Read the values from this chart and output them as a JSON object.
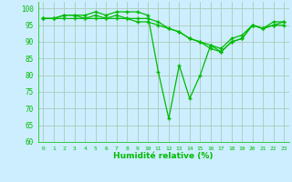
{
  "xlabel": "Humidité relative (%)",
  "ylabel": "",
  "background_color": "#cceeff",
  "grid_color": "#aaccbb",
  "line_color": "#00bb00",
  "marker_color": "#00bb00",
  "xlim": [
    -0.5,
    23.5
  ],
  "ylim": [
    60,
    102
  ],
  "yticks": [
    60,
    65,
    70,
    75,
    80,
    85,
    90,
    95,
    100
  ],
  "xticks": [
    0,
    1,
    2,
    3,
    4,
    5,
    6,
    7,
    8,
    9,
    10,
    11,
    12,
    13,
    14,
    15,
    16,
    17,
    18,
    19,
    20,
    21,
    22,
    23
  ],
  "series": [
    [
      97,
      97,
      98,
      98,
      98,
      99,
      98,
      99,
      99,
      99,
      98,
      81,
      67,
      83,
      73,
      80,
      89,
      88,
      91,
      92,
      95,
      94,
      96,
      96
    ],
    [
      97,
      97,
      98,
      98,
      97,
      98,
      97,
      98,
      97,
      97,
      97,
      96,
      94,
      93,
      91,
      90,
      89,
      87,
      90,
      91,
      95,
      94,
      95,
      96
    ],
    [
      97,
      97,
      97,
      97,
      97,
      97,
      97,
      97,
      97,
      96,
      96,
      95,
      94,
      93,
      91,
      90,
      88,
      87,
      90,
      91,
      95,
      94,
      95,
      95
    ]
  ]
}
